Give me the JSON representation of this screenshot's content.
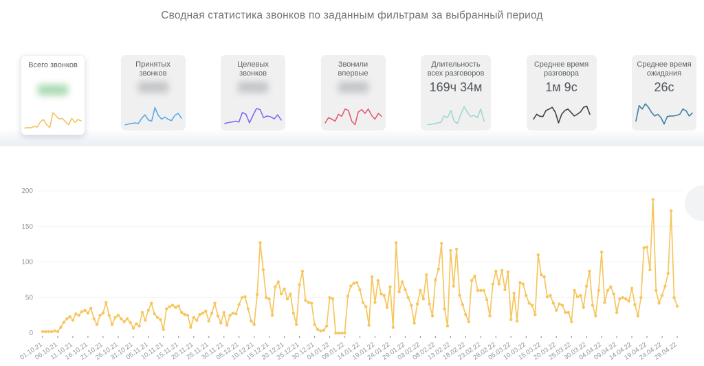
{
  "page": {
    "title": "Сводная статистика звонков по заданным фильтрам за выбранный период"
  },
  "cards": [
    {
      "label": "Всего звонков",
      "value": "",
      "value_hidden": true,
      "blur_color": "#8fce9b",
      "accent": "#f2c35c",
      "selected": true,
      "spark": [
        8,
        10,
        9,
        14,
        12,
        30,
        38,
        20,
        10,
        62,
        50,
        40,
        42,
        30,
        20,
        42,
        28,
        38,
        33
      ]
    },
    {
      "label": "Принятых звонков",
      "value": "",
      "value_hidden": true,
      "blur_color": "#b4b7ba",
      "accent": "#5aa9e8",
      "selected": false,
      "spark": [
        5,
        8,
        10,
        12,
        10,
        28,
        40,
        22,
        18,
        65,
        38,
        25,
        32,
        24,
        20,
        38,
        45,
        28
      ]
    },
    {
      "label": "Целевых звонков",
      "value": "",
      "value_hidden": true,
      "blur_color": "#b4b7ba",
      "accent": "#7e6cf5",
      "selected": false,
      "spark": [
        10,
        13,
        15,
        18,
        15,
        48,
        42,
        12,
        38,
        62,
        58,
        30,
        36,
        33,
        26,
        40,
        22
      ]
    },
    {
      "label": "Звонили впервые",
      "value": "",
      "value_hidden": true,
      "blur_color": "#b4b7ba",
      "accent": "#e35b72",
      "selected": false,
      "spark": [
        12,
        30,
        25,
        18,
        42,
        35,
        60,
        55,
        18,
        6,
        50,
        58,
        45,
        60,
        38,
        25,
        45,
        35
      ]
    },
    {
      "label": "Длительность всех разговоров",
      "value": "169ч 34м",
      "value_hidden": false,
      "blur_color": "",
      "accent": "#9fd8d2",
      "selected": false,
      "spark": [
        6,
        7,
        9,
        12,
        14,
        36,
        30,
        55,
        18,
        10,
        42,
        68,
        48,
        34,
        38,
        30,
        60,
        18
      ]
    },
    {
      "label": "Среднее время разговора",
      "value": "1м 9с",
      "value_hidden": false,
      "blur_color": "",
      "accent": "#453d42",
      "selected": false,
      "spark": [
        25,
        42,
        35,
        34,
        55,
        60,
        66,
        48,
        12,
        42,
        55,
        60,
        48,
        36,
        42,
        50,
        66,
        70,
        42
      ]
    },
    {
      "label": "Среднее время ожидания",
      "value": "26с",
      "value_hidden": false,
      "blur_color": "",
      "accent": "#3d7fa3",
      "selected": false,
      "spark": [
        18,
        72,
        60,
        78,
        66,
        48,
        36,
        42,
        30,
        8,
        34,
        36,
        36,
        38,
        42,
        60,
        54,
        36,
        46
      ]
    }
  ],
  "chart_data": {
    "type": "line",
    "series_name": "Всего звонков",
    "color": "#f6c65f",
    "grid": true,
    "legend": "none",
    "ylim": [
      0,
      200
    ],
    "y_ticks": [
      0,
      50,
      100,
      150,
      200
    ],
    "start_date": "01.10.21",
    "end_date": "29.04.22",
    "tick_every_days": 5,
    "x_tick_labels": [
      "01.10.21",
      "06.10.21",
      "11.10.21",
      "16.10.21",
      "21.10.21",
      "26.10.21",
      "31.10.21",
      "05.11.21",
      "10.11.21",
      "15.11.21",
      "20.11.21",
      "25.11.21",
      "30.11.21",
      "05.12.21",
      "10.12.21",
      "15.12.21",
      "20.12.21",
      "25.12.21",
      "30.12.21",
      "04.01.22",
      "09.01.22",
      "14.01.22",
      "19.01.22",
      "24.01.22",
      "29.01.22",
      "03.02.22",
      "08.02.22",
      "13.02.22",
      "18.02.22",
      "23.02.22",
      "28.02.22",
      "05.03.22",
      "10.03.22",
      "15.03.22",
      "20.03.22",
      "25.03.22",
      "30.03.22",
      "04.04.22",
      "09.04.22",
      "14.04.22",
      "19.04.22",
      "24.04.22",
      "29.04.22"
    ],
    "values": [
      2,
      2,
      2,
      2,
      3,
      2,
      8,
      15,
      20,
      23,
      18,
      27,
      25,
      30,
      32,
      28,
      35,
      20,
      12,
      25,
      28,
      43,
      25,
      12,
      22,
      25,
      20,
      16,
      20,
      15,
      7,
      13,
      10,
      29,
      18,
      32,
      42,
      27,
      22,
      19,
      5,
      34,
      37,
      39,
      36,
      38,
      29,
      26,
      25,
      8,
      22,
      18,
      26,
      28,
      31,
      17,
      28,
      42,
      24,
      14,
      29,
      11,
      25,
      28,
      27,
      40,
      50,
      51,
      34,
      17,
      12,
      54,
      127,
      89,
      50,
      48,
      25,
      65,
      72,
      55,
      62,
      48,
      55,
      28,
      12,
      68,
      87,
      46,
      43,
      42,
      12,
      5,
      3,
      4,
      10,
      50,
      48,
      0,
      0,
      0,
      0,
      52,
      66,
      70,
      71,
      61,
      43,
      37,
      11,
      79,
      43,
      74,
      55,
      53,
      36,
      65,
      8,
      127,
      58,
      72,
      61,
      50,
      39,
      14,
      41,
      60,
      48,
      82,
      41,
      24,
      75,
      90,
      126,
      34,
      10,
      116,
      66,
      118,
      53,
      40,
      26,
      16,
      74,
      80,
      60,
      60,
      60,
      47,
      24,
      69,
      87,
      69,
      88,
      61,
      86,
      19,
      56,
      17,
      71,
      69,
      53,
      42,
      39,
      26,
      110,
      82,
      79,
      51,
      53,
      42,
      32,
      41,
      39,
      29,
      29,
      16,
      60,
      51,
      53,
      36,
      66,
      87,
      39,
      24,
      60,
      114,
      43,
      60,
      65,
      55,
      29,
      48,
      50,
      48,
      45,
      63,
      40,
      24,
      50,
      120,
      121,
      89,
      188,
      60,
      42,
      53,
      66,
      84,
      172,
      50,
      38
    ]
  }
}
